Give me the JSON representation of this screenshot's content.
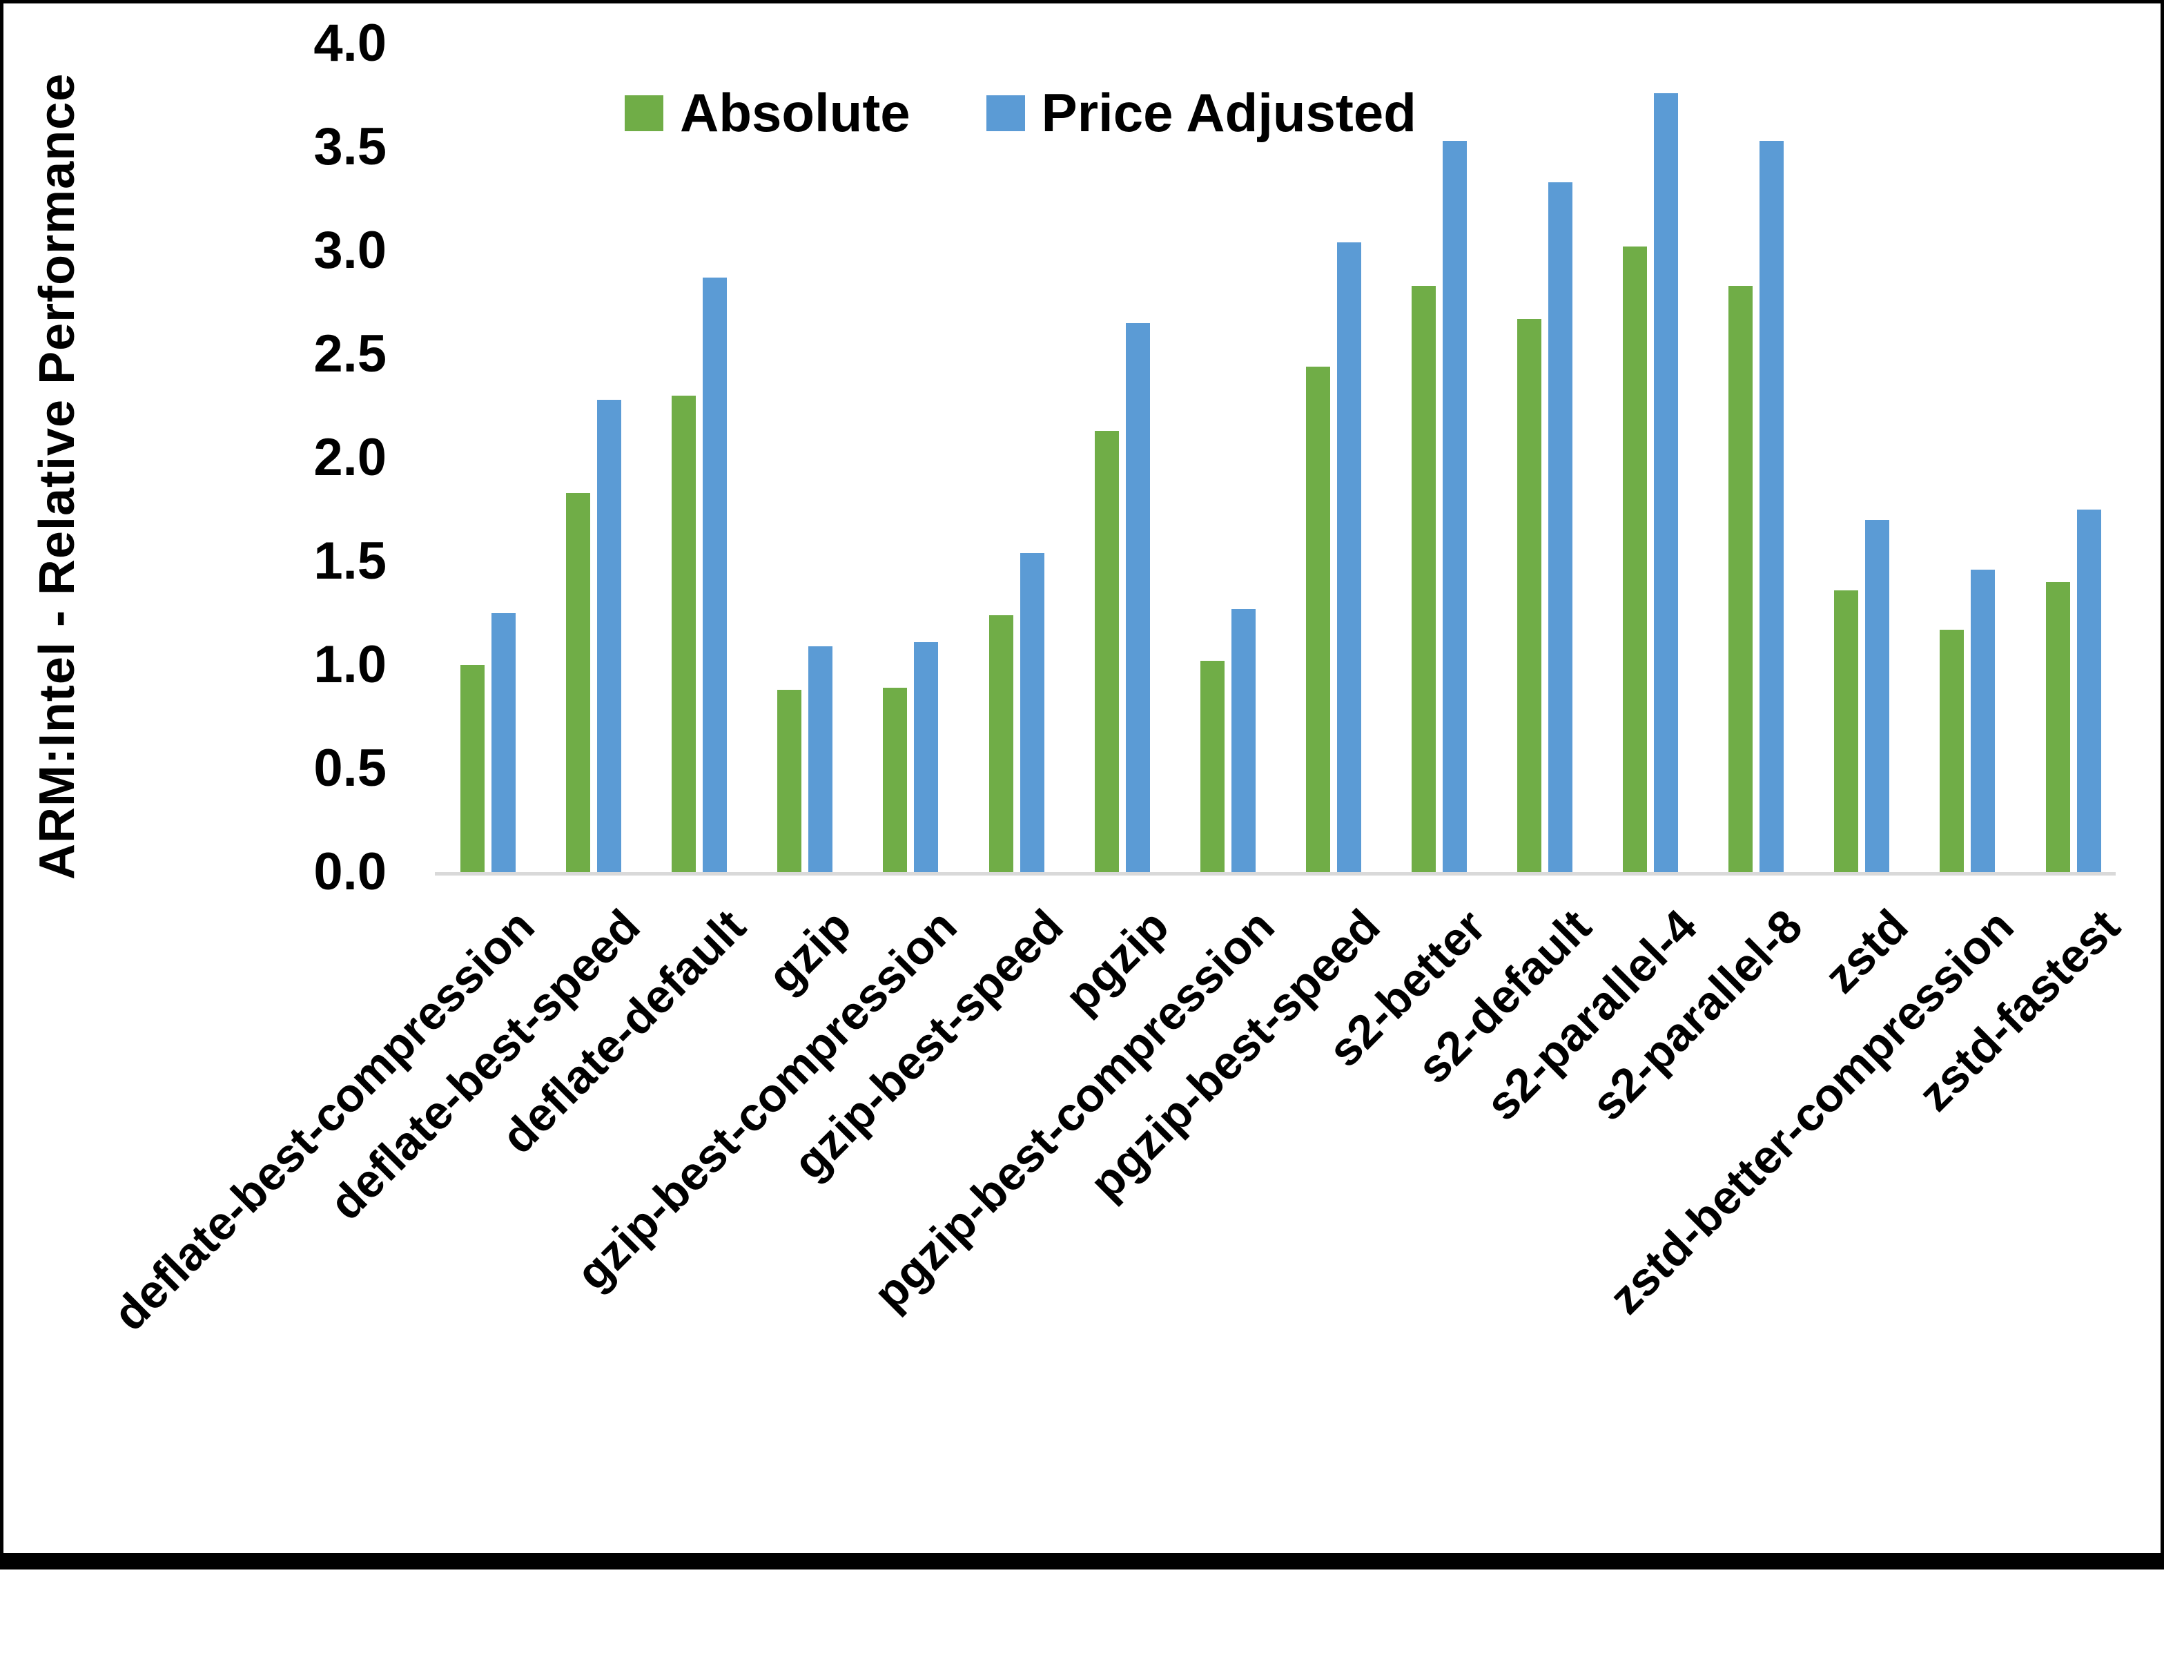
{
  "chart_data": {
    "type": "bar",
    "title": "",
    "ylabel": "ARM:Intel - Relative Performance",
    "xlabel": "",
    "ylim": [
      0.0,
      4.0
    ],
    "ytick_labels": [
      "0.0",
      "0.5",
      "1.0",
      "1.5",
      "2.0",
      "2.5",
      "3.0",
      "3.5",
      "4.0"
    ],
    "grid": "off",
    "legend_position": "top-center",
    "categories": [
      "deflate-best-compression",
      "deflate-best-speed",
      "deflate-default",
      "gzip",
      "gzip-best-compression",
      "gzip-best-speed",
      "pgzip",
      "pgzip-best-compression",
      "pgzip-best-speed",
      "s2-better",
      "s2-default",
      "s2-parallel-4",
      "s2-parallel-8",
      "zstd",
      "zstd-better-compression",
      "zstd-fastest"
    ],
    "series": [
      {
        "name": "Absolute",
        "color": "#70AD47",
        "values": [
          1.0,
          1.83,
          2.3,
          0.88,
          0.89,
          1.24,
          2.13,
          1.02,
          2.44,
          2.83,
          2.67,
          3.02,
          2.83,
          1.36,
          1.17,
          1.4
        ]
      },
      {
        "name": "Price Adjusted",
        "color": "#5B9BD5",
        "values": [
          1.25,
          2.28,
          2.87,
          1.09,
          1.11,
          1.54,
          2.65,
          1.27,
          3.04,
          3.53,
          3.33,
          3.76,
          3.53,
          1.7,
          1.46,
          1.75
        ]
      }
    ],
    "axis_line_color": "#D9D9D9"
  }
}
